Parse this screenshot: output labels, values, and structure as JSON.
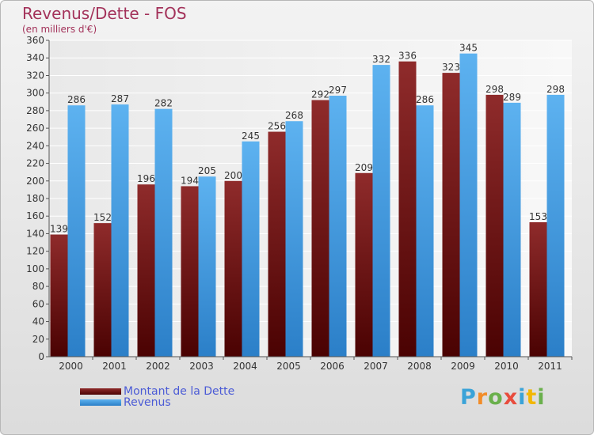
{
  "title": "Revenus/Dette - FOS",
  "subtitle": "(en milliers d'€)",
  "brand": {
    "text": "Proxiti",
    "letters": [
      {
        "ch": "P",
        "color": "#3aa3d8"
      },
      {
        "ch": "r",
        "color": "#f28c28"
      },
      {
        "ch": "o",
        "color": "#6ab04c"
      },
      {
        "ch": "x",
        "color": "#e84c3d"
      },
      {
        "ch": "i",
        "color": "#3aa3d8"
      },
      {
        "ch": "t",
        "color": "#f2b705"
      },
      {
        "ch": "i",
        "color": "#6ab04c"
      }
    ]
  },
  "chart_data": {
    "type": "bar",
    "categories": [
      "2000",
      "2001",
      "2002",
      "2003",
      "2004",
      "2005",
      "2006",
      "2007",
      "2008",
      "2009",
      "2010",
      "2011"
    ],
    "series": [
      {
        "name": "Montant de la Dette",
        "color": "#7a1a1a",
        "values": [
          139,
          152,
          196,
          194,
          200,
          256,
          292,
          209,
          336,
          323,
          298,
          153
        ]
      },
      {
        "name": "Revenus",
        "color": "#4aa3e8",
        "values": [
          286,
          287,
          282,
          205,
          245,
          268,
          297,
          332,
          286,
          345,
          289,
          298
        ]
      }
    ],
    "ylim": [
      0,
      360
    ],
    "yticks": [
      0,
      20,
      40,
      60,
      80,
      100,
      120,
      140,
      160,
      180,
      200,
      220,
      240,
      260,
      280,
      300,
      320,
      340,
      360
    ],
    "grid": true,
    "legend_position": "bottom-left"
  }
}
